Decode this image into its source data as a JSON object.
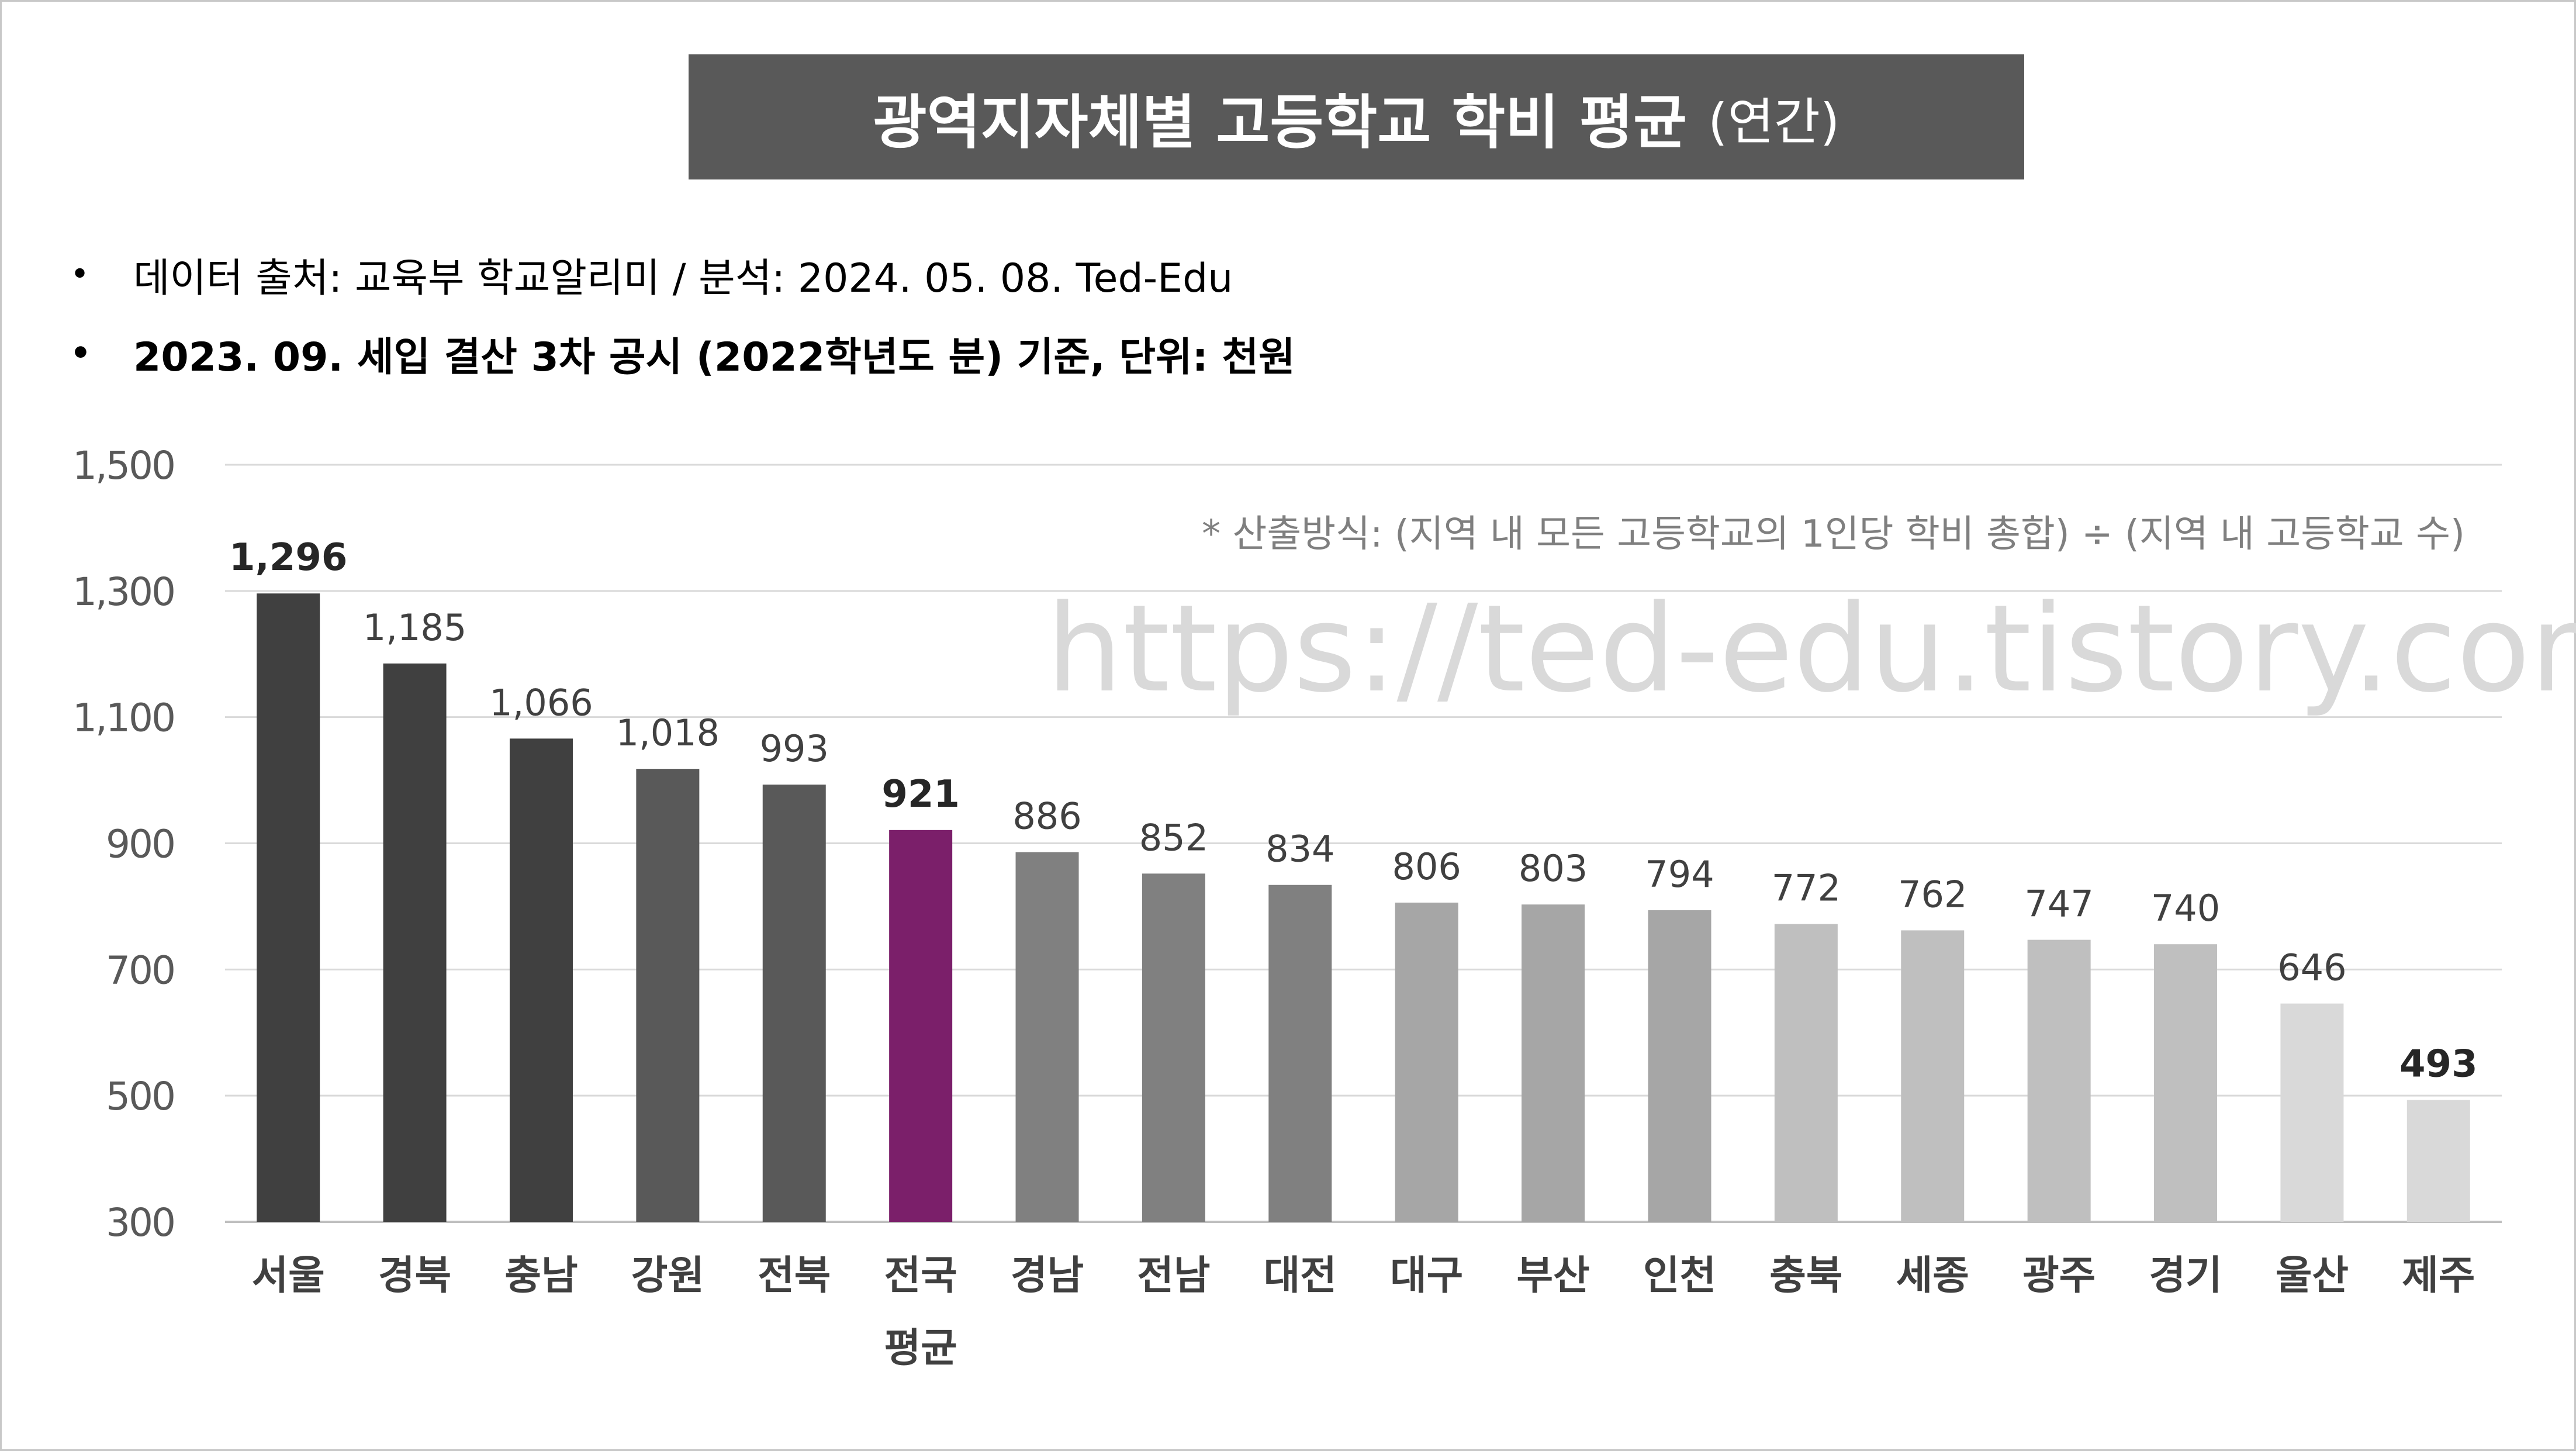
{
  "title": {
    "main": "광역지자체별 고등학교 학비 평균",
    "sub": "(연간)"
  },
  "bullets": {
    "symbol": "•",
    "line1": "데이터 출처: 교육부 학교알리미 / 분석: 2024. 05. 08. Ted-Edu",
    "line2": "2023. 09. 세입 결산 3차 공시 (2022학년도 분) 기준, 단위: 천원"
  },
  "note": "* 산출방식: (지역 내 모든 고등학교의 1인당 학비 총합) ÷ (지역 내 고등학교 수)",
  "watermark": "https://ted-edu.tistory.com",
  "chart_data": {
    "type": "bar",
    "title": "광역지자체별 고등학교 학비 평균 (연간)",
    "xlabel": "",
    "ylabel": "",
    "ylim": [
      300,
      1500
    ],
    "yticks": [
      300,
      500,
      700,
      900,
      1100,
      1300,
      1500
    ],
    "ytick_labels": [
      "300",
      "500",
      "700",
      "900",
      "1,100",
      "1,300",
      "1,500"
    ],
    "grid": true,
    "legend": "none",
    "categories": [
      "서울",
      "경북",
      "충남",
      "강원",
      "전북",
      "전국 평균",
      "경남",
      "전남",
      "대전",
      "대구",
      "부산",
      "인천",
      "충북",
      "세종",
      "광주",
      "경기",
      "울산",
      "제주"
    ],
    "category_lines": [
      [
        "서울"
      ],
      [
        "경북"
      ],
      [
        "충남"
      ],
      [
        "강원"
      ],
      [
        "전북"
      ],
      [
        "전국",
        "평균"
      ],
      [
        "경남"
      ],
      [
        "전남"
      ],
      [
        "대전"
      ],
      [
        "대구"
      ],
      [
        "부산"
      ],
      [
        "인천"
      ],
      [
        "충북"
      ],
      [
        "세종"
      ],
      [
        "광주"
      ],
      [
        "경기"
      ],
      [
        "울산"
      ],
      [
        "제주"
      ]
    ],
    "values": [
      1296,
      1185,
      1066,
      1018,
      993,
      921,
      886,
      852,
      834,
      806,
      803,
      794,
      772,
      762,
      747,
      740,
      646,
      493
    ],
    "value_labels": [
      "1,296",
      "1,185",
      "1,066",
      "1,018",
      "993",
      "921",
      "886",
      "852",
      "834",
      "806",
      "803",
      "794",
      "772",
      "762",
      "747",
      "740",
      "646",
      "493"
    ],
    "bold_labels": [
      true,
      false,
      false,
      false,
      false,
      true,
      false,
      false,
      false,
      false,
      false,
      false,
      false,
      false,
      false,
      false,
      false,
      true
    ],
    "colors": [
      "#404040",
      "#404040",
      "#404040",
      "#595959",
      "#595959",
      "#7b1f6a",
      "#808080",
      "#808080",
      "#808080",
      "#a6a6a6",
      "#a6a6a6",
      "#a6a6a6",
      "#bfbfbf",
      "#bfbfbf",
      "#bfbfbf",
      "#bfbfbf",
      "#d9d9d9",
      "#d9d9d9"
    ],
    "colors_meta": {
      "gridline": "#d9d9d9",
      "axis_line": "#bfbfbf",
      "tick_text": "#595959",
      "value_text": "#404040",
      "category_text": "#404040"
    }
  }
}
